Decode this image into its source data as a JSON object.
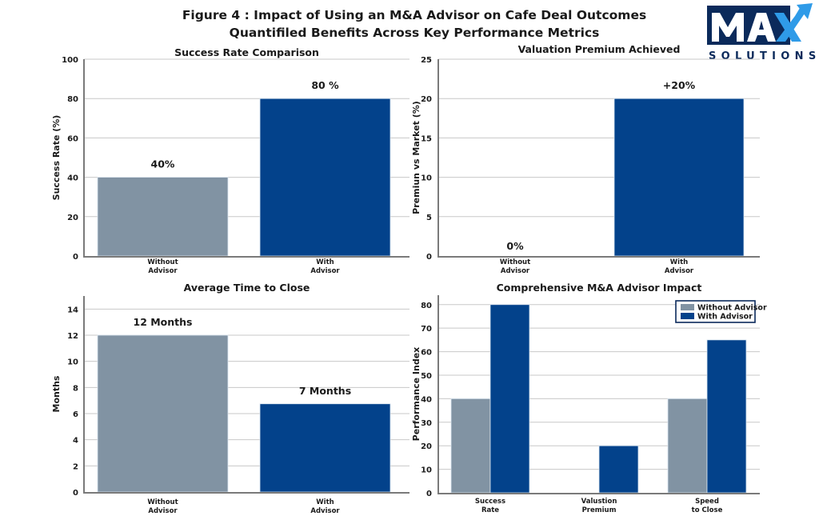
{
  "figure": {
    "title": "Figure 4 : Impact of Using an M&A Advisor on Cafe Deal Outcomes",
    "subtitle": "Quantifiled Benefits Across Key Performance Metrics"
  },
  "logo": {
    "main_text": "MAX",
    "sub_text": "SOLUTIONS",
    "icon": "arrow-up-right-icon"
  },
  "colors": {
    "without_advisor": "#8193a3",
    "with_advisor": "#03428b",
    "grid": "#c8c8c8",
    "axis": "#7a7a7a",
    "logo_dark": "#0b2a5b",
    "logo_accent": "#2f9be8"
  },
  "chart_data": [
    {
      "id": "success-rate",
      "type": "bar",
      "title": "Success Rate Comparison",
      "xlabel": "",
      "ylabel": "Success Rate (%)",
      "categories": [
        [
          "Without",
          "Advisor"
        ],
        [
          "With",
          "Advisor"
        ]
      ],
      "values": [
        40,
        80
      ],
      "data_labels": [
        "40%",
        "80 %"
      ],
      "bar_colors": [
        "without_advisor",
        "with_advisor"
      ],
      "ylim": [
        0,
        100
      ],
      "yticks": [
        0,
        20,
        40,
        60,
        80,
        100
      ],
      "grid": true
    },
    {
      "id": "valuation-premium",
      "type": "bar",
      "title": "Valuation Premium Achieved",
      "xlabel": "",
      "ylabel": "Premiun vs Market (%)",
      "categories": [
        [
          "Without",
          "Advisor"
        ],
        [
          "With",
          "Advisor"
        ]
      ],
      "values": [
        0,
        20
      ],
      "data_labels": [
        "0%",
        "+20%"
      ],
      "bar_colors": [
        "without_advisor",
        "with_advisor"
      ],
      "ylim": [
        0,
        25
      ],
      "yticks": [
        0,
        5,
        10,
        15,
        20,
        25
      ],
      "grid": true
    },
    {
      "id": "time-to-close",
      "type": "bar",
      "title": "Average Time to Close",
      "xlabel": "",
      "ylabel": "Months",
      "categories": [
        [
          "Without",
          "Advisor"
        ],
        [
          "With",
          "Advisor"
        ]
      ],
      "values": [
        12,
        6.75
      ],
      "data_labels": [
        "12 Months",
        "7 Months"
      ],
      "bar_colors": [
        "without_advisor",
        "with_advisor"
      ],
      "ylim": [
        0,
        15
      ],
      "yticks": [
        0,
        2,
        4,
        6,
        8,
        10,
        12,
        14
      ],
      "grid": true
    },
    {
      "id": "comprehensive-impact",
      "type": "bar",
      "title": "Comprehensive M&A Advisor Impact",
      "xlabel": "",
      "ylabel": "Performance Index",
      "categories": [
        [
          "Success",
          "Rate"
        ],
        [
          "Valustion",
          "Premium"
        ],
        [
          "Speed",
          "to Close"
        ]
      ],
      "series": [
        {
          "name": "Without Advisor",
          "color": "without_advisor",
          "values": [
            40,
            0,
            40
          ]
        },
        {
          "name": "With Advisor",
          "color": "with_advisor",
          "values": [
            80,
            20,
            65
          ]
        }
      ],
      "ylim": [
        0,
        84
      ],
      "yticks": [
        0,
        10,
        20,
        30,
        40,
        50,
        60,
        70,
        80
      ],
      "grid": true,
      "legend": "top-right"
    }
  ]
}
